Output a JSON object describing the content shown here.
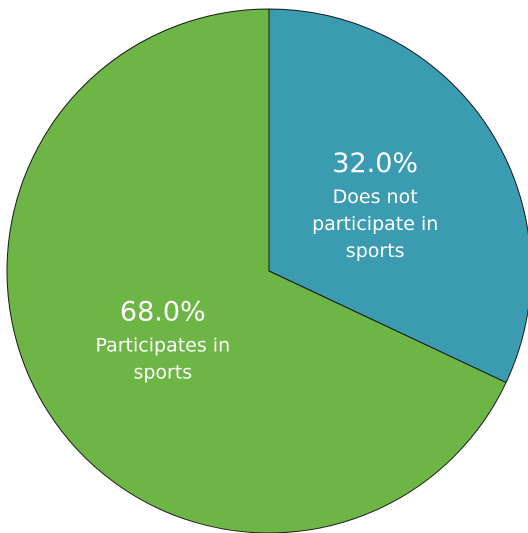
{
  "chart_data": {
    "type": "pie",
    "title": "",
    "slices": [
      {
        "value": 32.0,
        "label_value": "32.0%",
        "label_lines": [
          "Does not",
          "participate in",
          "sports"
        ],
        "color": "#3a9bb1"
      },
      {
        "value": 68.0,
        "label_value": "68.0%",
        "label_lines": [
          "Participates in",
          "sports"
        ],
        "color": "#6db544"
      }
    ],
    "start_angle_deg": 0,
    "direction": "clockwise",
    "legend": "none"
  }
}
